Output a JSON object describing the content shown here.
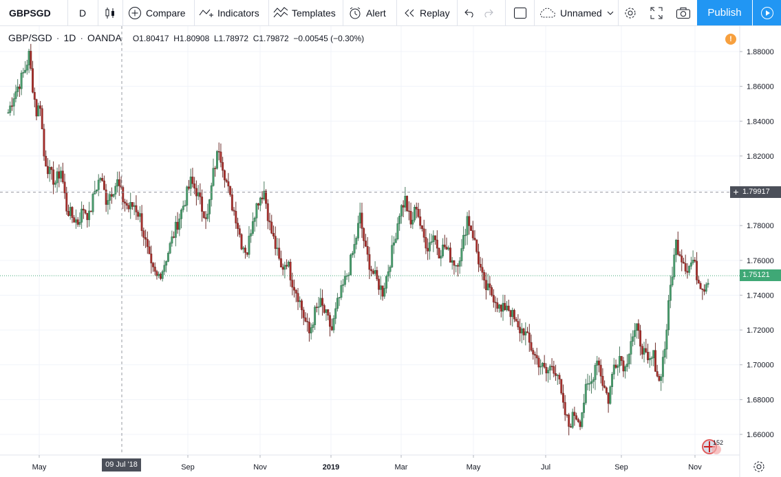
{
  "toolbar": {
    "symbol": "GBPSGD",
    "interval": "D",
    "compare_label": "Compare",
    "indicators_label": "Indicators",
    "templates_label": "Templates",
    "alert_label": "Alert",
    "replay_label": "Replay",
    "layout_name": "Unnamed",
    "publish_label": "Publish",
    "icons": [
      "candles-icon",
      "plus-circle-icon",
      "indicators-icon",
      "templates-icon",
      "alert-icon",
      "replay-icon",
      "undo-icon",
      "redo-icon",
      "fullscreen-box-icon",
      "cloud-icon",
      "chevron-down-icon",
      "gear-icon",
      "expand-icon",
      "camera-icon",
      "play-icon"
    ]
  },
  "legend": {
    "pair": "GBP/SGD",
    "timeframe": "1D",
    "source": "OANDA",
    "open": "O1.80417",
    "high": "H1.80908",
    "low": "L1.78972",
    "close": "C1.79872",
    "change": "−0.00545 (−0.30%)"
  },
  "notice_icon": "!",
  "crosshair": {
    "price_label": "1.79917",
    "date_label": "09 Jul '18"
  },
  "last_price_label": "1.75121",
  "badge_count": "152",
  "colors": {
    "up": "#26a69a",
    "up_body": "#4a9f6e",
    "down": "#ab2d2a",
    "accent": "#2196f3",
    "last_price": "#3fa876"
  },
  "chart_data": {
    "type": "candlestick",
    "symbol": "GBP/SGD",
    "ylim": [
      1.65,
      1.885
    ],
    "yticks": [
      "1.88000",
      "1.86000",
      "1.84000",
      "1.82000",
      "1.80000",
      "1.78000",
      "1.76000",
      "1.74000",
      "1.72000",
      "1.70000",
      "1.68000",
      "1.66000"
    ],
    "ytick_values": [
      1.88,
      1.86,
      1.84,
      1.82,
      1.8,
      1.78,
      1.76,
      1.74,
      1.72,
      1.7,
      1.68,
      1.66
    ],
    "xticks": [
      "May",
      "Sep",
      "Nov",
      "2019",
      "Mar",
      "May",
      "Jul",
      "Sep",
      "Nov"
    ],
    "xtick_bold": [
      false,
      false,
      false,
      true,
      false,
      false,
      false,
      false,
      false
    ],
    "close_path": [
      [
        0,
        1.845
      ],
      [
        3,
        1.855
      ],
      [
        6,
        1.862
      ],
      [
        9,
        1.87
      ],
      [
        11,
        1.878
      ],
      [
        13,
        1.86
      ],
      [
        15,
        1.845
      ],
      [
        17,
        1.85
      ],
      [
        19,
        1.82
      ],
      [
        22,
        1.81
      ],
      [
        25,
        1.805
      ],
      [
        28,
        1.812
      ],
      [
        31,
        1.79
      ],
      [
        34,
        1.785
      ],
      [
        37,
        1.782
      ],
      [
        40,
        1.79
      ],
      [
        43,
        1.785
      ],
      [
        46,
        1.8
      ],
      [
        49,
        1.808
      ],
      [
        52,
        1.795
      ],
      [
        55,
        1.8
      ],
      [
        58,
        1.805
      ],
      [
        61,
        1.795
      ],
      [
        64,
        1.79
      ],
      [
        67,
        1.792
      ],
      [
        70,
        1.785
      ],
      [
        73,
        1.77
      ],
      [
        76,
        1.755
      ],
      [
        79,
        1.75
      ],
      [
        82,
        1.755
      ],
      [
        85,
        1.765
      ],
      [
        88,
        1.775
      ],
      [
        91,
        1.785
      ],
      [
        94,
        1.795
      ],
      [
        97,
        1.805
      ],
      [
        100,
        1.8
      ],
      [
        103,
        1.79
      ],
      [
        106,
        1.785
      ],
      [
        109,
        1.81
      ],
      [
        112,
        1.825
      ],
      [
        115,
        1.81
      ],
      [
        118,
        1.795
      ],
      [
        121,
        1.785
      ],
      [
        124,
        1.77
      ],
      [
        127,
        1.765
      ],
      [
        130,
        1.785
      ],
      [
        133,
        1.795
      ],
      [
        136,
        1.8
      ],
      [
        139,
        1.78
      ],
      [
        142,
        1.768
      ],
      [
        145,
        1.755
      ],
      [
        148,
        1.76
      ],
      [
        151,
        1.748
      ],
      [
        154,
        1.74
      ],
      [
        157,
        1.728
      ],
      [
        160,
        1.718
      ],
      [
        163,
        1.73
      ],
      [
        166,
        1.735
      ],
      [
        169,
        1.728
      ],
      [
        172,
        1.72
      ],
      [
        175,
        1.735
      ],
      [
        178,
        1.745
      ],
      [
        181,
        1.755
      ],
      [
        184,
        1.768
      ],
      [
        187,
        1.785
      ],
      [
        190,
        1.765
      ],
      [
        193,
        1.755
      ],
      [
        196,
        1.748
      ],
      [
        199,
        1.742
      ],
      [
        202,
        1.755
      ],
      [
        205,
        1.77
      ],
      [
        208,
        1.788
      ],
      [
        211,
        1.795
      ],
      [
        214,
        1.78
      ],
      [
        217,
        1.792
      ],
      [
        220,
        1.775
      ],
      [
        223,
        1.768
      ],
      [
        226,
        1.775
      ],
      [
        229,
        1.765
      ],
      [
        232,
        1.768
      ],
      [
        235,
        1.762
      ],
      [
        238,
        1.758
      ],
      [
        241,
        1.765
      ],
      [
        244,
        1.785
      ],
      [
        247,
        1.775
      ],
      [
        250,
        1.76
      ],
      [
        253,
        1.745
      ],
      [
        256,
        1.742
      ],
      [
        259,
        1.738
      ],
      [
        262,
        1.73
      ],
      [
        265,
        1.735
      ],
      [
        268,
        1.728
      ],
      [
        271,
        1.72
      ],
      [
        274,
        1.72
      ],
      [
        277,
        1.712
      ],
      [
        280,
        1.705
      ],
      [
        283,
        1.7
      ],
      [
        286,
        1.695
      ],
      [
        289,
        1.7
      ],
      [
        292,
        1.695
      ],
      [
        295,
        1.675
      ],
      [
        298,
        1.665
      ],
      [
        301,
        1.672
      ],
      [
        304,
        1.668
      ],
      [
        307,
        1.685
      ],
      [
        310,
        1.69
      ],
      [
        313,
        1.705
      ],
      [
        316,
        1.69
      ],
      [
        319,
        1.68
      ],
      [
        322,
        1.7
      ],
      [
        325,
        1.705
      ],
      [
        328,
        1.698
      ],
      [
        331,
        1.715
      ],
      [
        334,
        1.72
      ],
      [
        337,
        1.71
      ],
      [
        340,
        1.7
      ],
      [
        343,
        1.705
      ],
      [
        346,
        1.69
      ],
      [
        349,
        1.71
      ],
      [
        352,
        1.745
      ],
      [
        355,
        1.77
      ],
      [
        358,
        1.762
      ],
      [
        361,
        1.755
      ],
      [
        364,
        1.76
      ],
      [
        367,
        1.748
      ],
      [
        370,
        1.745
      ],
      [
        372,
        1.75
      ]
    ]
  }
}
